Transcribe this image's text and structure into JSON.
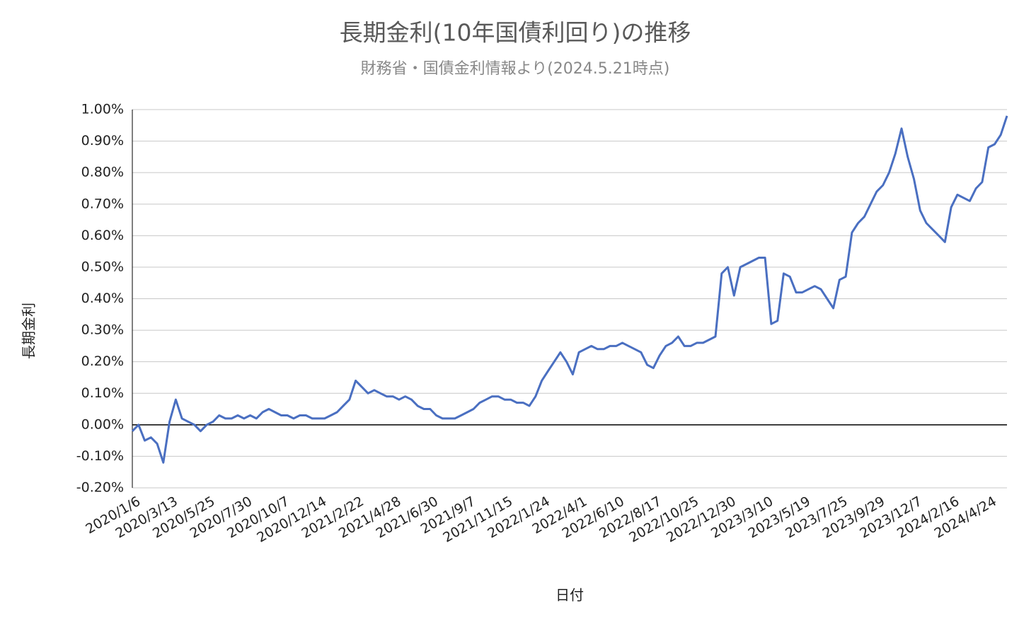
{
  "chart_data": {
    "type": "line",
    "title": "長期金利(10年国債利回り)の推移",
    "subtitle": "財務省・国債金利情報より(2024.5.21時点)",
    "x_label": "日付",
    "y_label": "長期金利",
    "categories": [
      "2020/1/6",
      null,
      null,
      null,
      null,
      null,
      "2020/3/13",
      null,
      null,
      null,
      null,
      null,
      "2020/5/25",
      null,
      null,
      null,
      null,
      null,
      "2020/7/30",
      null,
      null,
      null,
      null,
      null,
      "2020/10/7",
      null,
      null,
      null,
      null,
      null,
      "2020/12/14",
      null,
      null,
      null,
      null,
      null,
      "2021/2/22",
      null,
      null,
      null,
      null,
      null,
      "2021/4/28",
      null,
      null,
      null,
      null,
      null,
      "2021/6/30",
      null,
      null,
      null,
      null,
      null,
      "2021/9/7",
      null,
      null,
      null,
      null,
      null,
      "2021/11/15",
      null,
      null,
      null,
      null,
      null,
      "2022/1/24",
      null,
      null,
      null,
      null,
      null,
      "2022/4/1",
      null,
      null,
      null,
      null,
      null,
      "2022/6/10",
      null,
      null,
      null,
      null,
      null,
      "2022/8/17",
      null,
      null,
      null,
      null,
      null,
      "2022/10/25",
      null,
      null,
      null,
      null,
      null,
      "2022/12/30",
      null,
      null,
      null,
      null,
      null,
      "2023/3/10",
      null,
      null,
      null,
      null,
      null,
      "2023/5/19",
      null,
      null,
      null,
      null,
      null,
      "2023/7/25",
      null,
      null,
      null,
      null,
      null,
      "2023/9/29",
      null,
      null,
      null,
      null,
      null,
      "2023/12/7",
      null,
      null,
      null,
      null,
      null,
      "2024/2/16",
      null,
      null,
      null,
      null,
      null,
      "2024/4/24",
      null,
      null,
      null
    ],
    "series": [
      {
        "name": "長期金利",
        "color": "#4a6fc1",
        "values": [
          -0.02,
          0.0,
          -0.05,
          -0.04,
          -0.06,
          -0.12,
          0.01,
          0.08,
          0.02,
          0.01,
          0.0,
          -0.02,
          0.0,
          0.01,
          0.03,
          0.02,
          0.02,
          0.03,
          0.02,
          0.03,
          0.02,
          0.04,
          0.05,
          0.04,
          0.03,
          0.03,
          0.02,
          0.03,
          0.03,
          0.02,
          0.02,
          0.02,
          0.03,
          0.04,
          0.06,
          0.08,
          0.14,
          0.12,
          0.1,
          0.11,
          0.1,
          0.09,
          0.09,
          0.08,
          0.09,
          0.08,
          0.06,
          0.05,
          0.05,
          0.03,
          0.02,
          0.02,
          0.02,
          0.03,
          0.04,
          0.05,
          0.07,
          0.08,
          0.09,
          0.09,
          0.08,
          0.08,
          0.07,
          0.07,
          0.06,
          0.09,
          0.14,
          0.17,
          0.2,
          0.23,
          0.2,
          0.16,
          0.23,
          0.24,
          0.25,
          0.24,
          0.24,
          0.25,
          0.25,
          0.26,
          0.25,
          0.24,
          0.23,
          0.19,
          0.18,
          0.22,
          0.25,
          0.26,
          0.28,
          0.25,
          0.25,
          0.26,
          0.26,
          0.27,
          0.28,
          0.48,
          0.5,
          0.41,
          0.5,
          0.51,
          0.52,
          0.53,
          0.53,
          0.32,
          0.33,
          0.48,
          0.47,
          0.42,
          0.42,
          0.43,
          0.44,
          0.43,
          0.4,
          0.37,
          0.46,
          0.47,
          0.61,
          0.64,
          0.66,
          0.7,
          0.74,
          0.76,
          0.8,
          0.86,
          0.94,
          0.85,
          0.78,
          0.68,
          0.64,
          0.62,
          0.6,
          0.58,
          0.69,
          0.73,
          0.72,
          0.71,
          0.75,
          0.77,
          0.88,
          0.89,
          0.92,
          0.98
        ]
      }
    ],
    "ylim": [
      -0.2,
      1.0
    ],
    "yticks": [
      {
        "value": -0.2,
        "label": "-0.20%"
      },
      {
        "value": -0.1,
        "label": "-0.10%"
      },
      {
        "value": 0,
        "label": "0.00%"
      },
      {
        "value": 0.1,
        "label": "0.10%"
      },
      {
        "value": 0.2,
        "label": "0.20%"
      },
      {
        "value": 0.3,
        "label": "0.30%"
      },
      {
        "value": 0.4,
        "label": "0.40%"
      },
      {
        "value": 0.5,
        "label": "0.50%"
      },
      {
        "value": 0.6,
        "label": "0.60%"
      },
      {
        "value": 0.7,
        "label": "0.70%"
      },
      {
        "value": 0.8,
        "label": "0.80%"
      },
      {
        "value": 0.9,
        "label": "0.90%"
      },
      {
        "value": 1.0,
        "label": "1.00%"
      }
    ],
    "grid": true
  }
}
